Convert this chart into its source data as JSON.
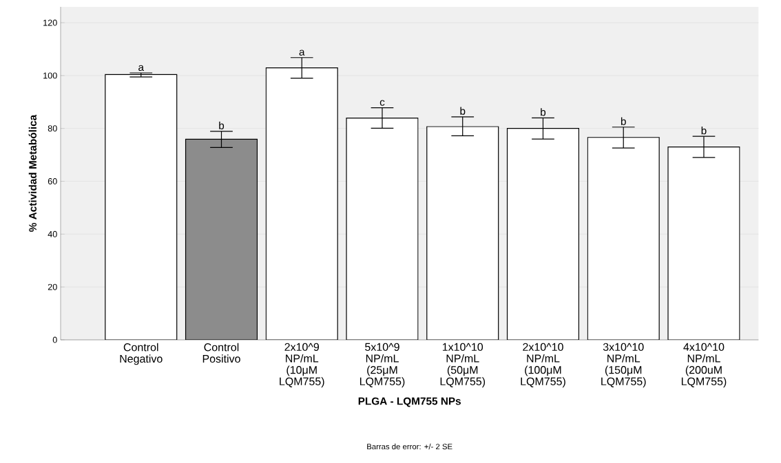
{
  "chart_data": {
    "type": "bar",
    "xlabel": "PLGA - LQM755 NPs",
    "ylabel": "% Actividad Metabólica",
    "categories": [
      "Control Negativo",
      "Control Positivo",
      "2x10^9 NP/mL (10μM LQM755)",
      "5x10^9 NP/mL (25μM LQM755)",
      "1x10^10 NP/mL (50μM LQM755)",
      "2x10^10 NP/mL (100μM LQM755)",
      "3x10^10 NP/mL (150μM LQM755)",
      "4x10^10 NP/mL (200uM LQM755)"
    ],
    "values": [
      100.4,
      75.9,
      102.9,
      83.9,
      80.7,
      80.0,
      76.6,
      73.0
    ],
    "errors": [
      [
        99.5,
        101.0
      ],
      [
        72.8,
        78.9
      ],
      [
        99.0,
        106.8
      ],
      [
        80.1,
        87.8
      ],
      [
        77.2,
        84.4
      ],
      [
        76.0,
        84.0
      ],
      [
        72.6,
        80.5
      ],
      [
        69.0,
        77.0
      ]
    ],
    "colors": [
      "#ffffff",
      "#8c8c8c",
      "#ffffff",
      "#ffffff",
      "#ffffff",
      "#ffffff",
      "#ffffff",
      "#ffffff"
    ],
    "ylim": [
      0,
      126
    ],
    "yticks": [
      0,
      20,
      40,
      60,
      80,
      100,
      120
    ],
    "grid": "y",
    "annotations": [
      {
        "text": "a",
        "x": "Control Negativo",
        "y": 101.0
      },
      {
        "text": "b",
        "x": "Control Positivo",
        "y": 78.9
      },
      {
        "text": "a",
        "x": "2x10^9 NP/mL (10μM LQM755)",
        "y": 106.8
      },
      {
        "text": "c",
        "x": "5x10^9 NP/mL (25μM LQM755)",
        "y": 87.8
      },
      {
        "text": "b",
        "x": "1x10^10 NP/mL (50μM LQM755)",
        "y": 84.4
      },
      {
        "text": "b",
        "x": "2x10^10 NP/mL (100μM LQM755)",
        "y": 84.0
      },
      {
        "text": "b",
        "x": "3x10^10 NP/mL (150μM LQM755)",
        "y": 80.5
      },
      {
        "text": "b",
        "x": "4x10^10 NP/mL (200uM LQM755)",
        "y": 77.0
      },
      "Barras de error: +/- 2 SE"
    ]
  }
}
